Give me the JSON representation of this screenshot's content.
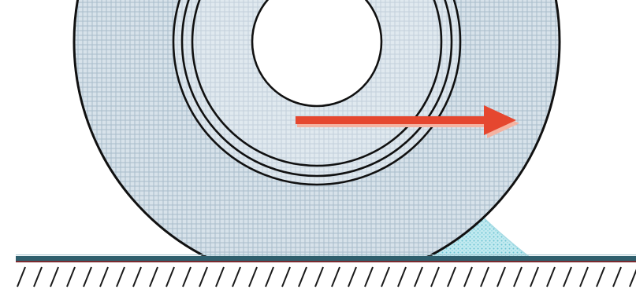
{
  "colors": {
    "wheel_fill": "#d7e2ea",
    "wheel_hatch": "#a9bccb",
    "outline": "#111111",
    "arrow": "#e5472f",
    "arrow_shadow": "#f4b3a2",
    "ground_top": "#2f5f6d",
    "ground_line": "#7a2a2f",
    "sand": "#8fd3df",
    "hatch": "#1a1a1a"
  },
  "icons": {
    "wheel": "rolling-wheel",
    "arrow": "motion-arrow",
    "ground": "ground-surface",
    "deformation": "sand-pile"
  }
}
